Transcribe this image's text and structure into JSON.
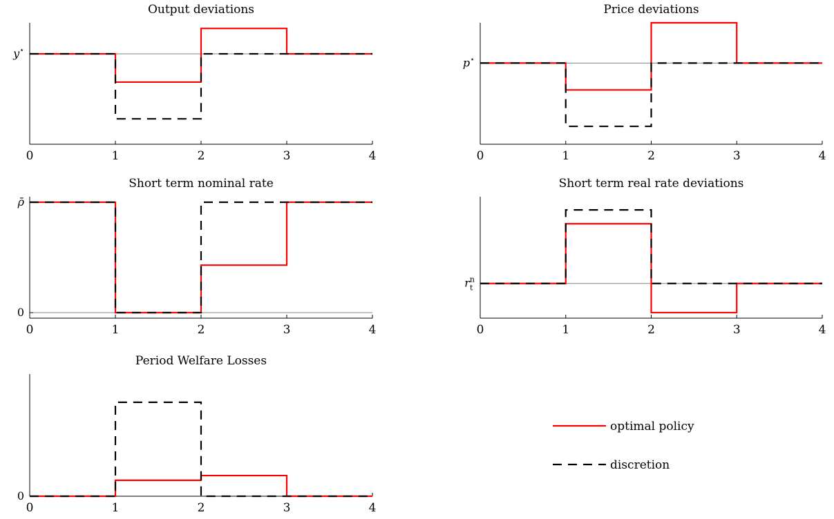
{
  "colors": {
    "optimal": "#ff0000",
    "discretion": "#000000",
    "axis": "#000000",
    "reference": "#808080"
  },
  "legend": {
    "position": "right",
    "items": [
      {
        "key": "optimal",
        "label": "optimal policy",
        "style": "solid"
      },
      {
        "key": "discretion",
        "label": "discretion",
        "style": "dashed"
      }
    ]
  },
  "chart_data": [
    {
      "id": "output",
      "type": "line",
      "step": "post",
      "title": "Output deviations",
      "xlim": [
        0,
        4
      ],
      "ylim": [
        -1.6,
        0.55
      ],
      "xticks": [
        "0",
        "1",
        "2",
        "3",
        "4"
      ],
      "yticks": [
        {
          "value": 0,
          "label": "y",
          "sup": "⋆"
        }
      ],
      "reference": 0,
      "x": [
        0,
        1,
        2,
        3,
        4
      ],
      "series": [
        {
          "name": "optimal policy",
          "key": "optimal",
          "values": [
            0,
            -0.5,
            0.45,
            0,
            0
          ]
        },
        {
          "name": "discretion",
          "key": "discretion",
          "values": [
            0,
            -1.15,
            0,
            0,
            0
          ]
        }
      ]
    },
    {
      "id": "price",
      "type": "line",
      "step": "post",
      "title": "Price deviations",
      "xlim": [
        0,
        4
      ],
      "ylim": [
        -1.45,
        0.72
      ],
      "xticks": [
        "0",
        "1",
        "2",
        "3",
        "4"
      ],
      "yticks": [
        {
          "value": 0,
          "label": "p",
          "sup": "⋆"
        }
      ],
      "reference": 0,
      "x": [
        0,
        1,
        2,
        3,
        4
      ],
      "series": [
        {
          "name": "optimal policy",
          "key": "optimal",
          "values": [
            0,
            -0.48,
            0.72,
            0,
            0
          ]
        },
        {
          "name": "discretion",
          "key": "discretion",
          "values": [
            0,
            -1.13,
            0,
            0,
            0
          ]
        }
      ]
    },
    {
      "id": "nominal",
      "type": "line",
      "step": "post",
      "title": "Short term nominal rate",
      "xlim": [
        0,
        4
      ],
      "ylim": [
        -0.05,
        1.05
      ],
      "xticks": [
        "0",
        "1",
        "2",
        "3",
        "4"
      ],
      "yticks": [
        {
          "value": 1,
          "label": "ρ̄",
          "sup": ""
        },
        {
          "value": 0,
          "label": "0",
          "sup": ""
        }
      ],
      "reference": 0,
      "x": [
        0,
        1,
        2,
        3,
        4
      ],
      "series": [
        {
          "name": "optimal policy",
          "key": "optimal",
          "values": [
            1,
            0,
            0.43,
            1,
            1
          ]
        },
        {
          "name": "discretion",
          "key": "discretion",
          "values": [
            1,
            0,
            1,
            1,
            1
          ]
        }
      ]
    },
    {
      "id": "real",
      "type": "line",
      "step": "post",
      "title": "Short term real rate deviations",
      "xlim": [
        0,
        4
      ],
      "ylim": [
        -0.5,
        1.25
      ],
      "xticks": [
        "0",
        "1",
        "2",
        "3",
        "4"
      ],
      "yticks": [
        {
          "value": 0,
          "label": "r",
          "sup": "n",
          "sub": "t"
        }
      ],
      "reference": 0,
      "x": [
        0,
        1,
        2,
        3,
        4
      ],
      "series": [
        {
          "name": "optimal policy",
          "key": "optimal",
          "values": [
            0,
            0.86,
            -0.42,
            0,
            0
          ]
        },
        {
          "name": "discretion",
          "key": "discretion",
          "values": [
            0,
            1.06,
            0,
            0,
            0
          ]
        }
      ]
    },
    {
      "id": "welfare",
      "type": "line",
      "step": "post",
      "title": "Period Welfare Losses",
      "xlim": [
        0,
        4
      ],
      "ylim": [
        0,
        1.3
      ],
      "xticks": [
        "0",
        "1",
        "2",
        "3",
        "4"
      ],
      "yticks": [
        {
          "value": 0,
          "label": "0",
          "sup": ""
        }
      ],
      "reference": null,
      "x": [
        0,
        1,
        2,
        3,
        4
      ],
      "series": [
        {
          "name": "optimal policy",
          "key": "optimal",
          "values": [
            0,
            0.17,
            0.22,
            0,
            0
          ]
        },
        {
          "name": "discretion",
          "key": "discretion",
          "values": [
            0,
            1.0,
            0,
            0,
            0
          ]
        }
      ]
    }
  ]
}
